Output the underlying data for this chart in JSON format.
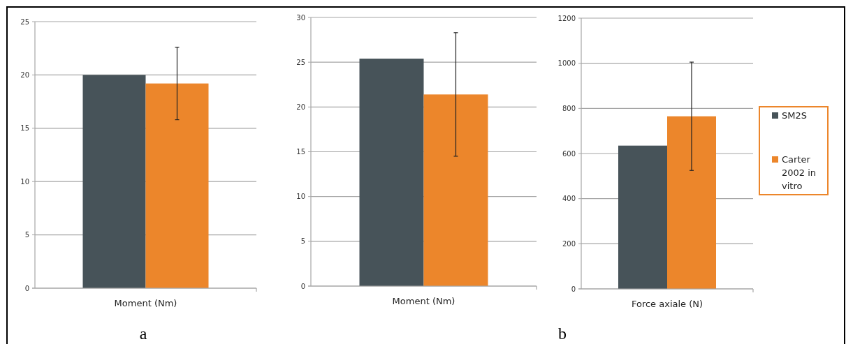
{
  "chart_data": [
    {
      "type": "bar",
      "categories": [
        "Moment (Nm)"
      ],
      "series": [
        {
          "color": "#475359",
          "values": [
            20
          ]
        },
        {
          "color": "#ec862b",
          "values": [
            19.2
          ],
          "errors": [
            [
              15.8,
              22.6
            ]
          ]
        }
      ],
      "ylim": [
        0,
        25
      ],
      "yticks": [
        0,
        5,
        10,
        15,
        20,
        25
      ],
      "grid": "y",
      "legend": false,
      "annotations": [
        "a"
      ]
    },
    {
      "type": "bar",
      "categories": [
        "Moment (Nm)"
      ],
      "series": [
        {
          "color": "#475359",
          "values": [
            25.4
          ]
        },
        {
          "color": "#ec862b",
          "values": [
            21.4
          ],
          "errors": [
            [
              14.5,
              28.3
            ]
          ]
        }
      ],
      "ylim": [
        0,
        30
      ],
      "yticks": [
        0,
        5,
        10,
        15,
        20,
        25,
        30
      ],
      "grid": "y",
      "legend": false
    },
    {
      "type": "bar",
      "categories": [
        "Force axiale (N)"
      ],
      "series": [
        {
          "name": "SM2S",
          "color": "#475359",
          "values": [
            635
          ]
        },
        {
          "name": "Carter 2002 in vitro",
          "color": "#ec862b",
          "values": [
            765
          ],
          "errors": [
            [
              525,
              1005
            ]
          ]
        }
      ],
      "ylim": [
        0,
        1200
      ],
      "yticks": [
        0,
        200,
        400,
        600,
        800,
        1000,
        1200
      ],
      "grid": "y",
      "legend": "right",
      "annotations": [
        "b"
      ]
    }
  ]
}
